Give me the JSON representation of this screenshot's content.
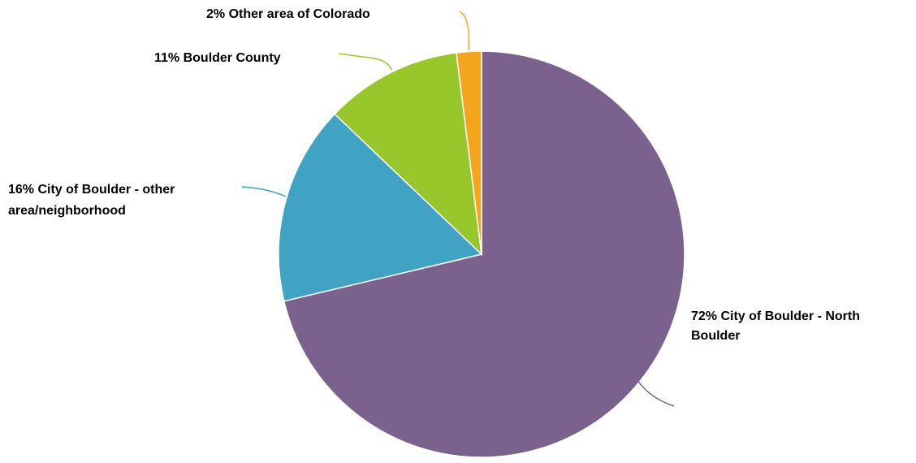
{
  "chart_data": {
    "type": "pie",
    "title": "",
    "start_angle_deg": 0,
    "direction": "clockwise",
    "legend": "none",
    "slices": [
      {
        "label": "City of Boulder - North Boulder",
        "value": 72,
        "display_lines": [
          "72% City of Boulder - North",
          "Boulder"
        ],
        "color": "#7b618d"
      },
      {
        "label": "City of Boulder - other area/neighborhood",
        "value": 16,
        "display_lines": [
          "16% City of Boulder - other",
          "area/neighborhood"
        ],
        "color": "#40a3c3"
      },
      {
        "label": "Boulder County",
        "value": 11,
        "display_lines": [
          "11% Boulder County"
        ],
        "color": "#97c72b"
      },
      {
        "label": "Other area of Colorado",
        "value": 2,
        "display_lines": [
          "2% Other area of Colorado"
        ],
        "color": "#f3a51d"
      }
    ]
  }
}
